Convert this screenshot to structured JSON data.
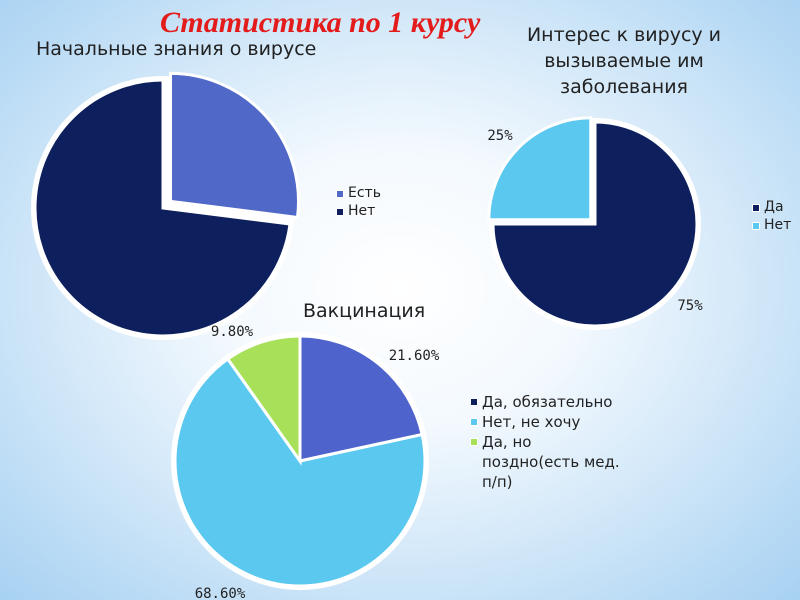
{
  "slide_title": "Статистика по 1 курсу",
  "chart_data": [
    {
      "type": "pie",
      "title": "Начальные знания о вирусе",
      "categories": [
        "Есть",
        "Нет"
      ],
      "values": [
        27,
        73
      ],
      "colors": [
        "#5068c8",
        "#0d1f5c"
      ],
      "legend": [
        "Есть",
        "Нет"
      ],
      "legend_placement": "right",
      "exploded_first_slice": true
    },
    {
      "type": "pie",
      "title": "Интерес к вирусу и вызываемые им заболевания",
      "categories": [
        "Да",
        "Нет"
      ],
      "values": [
        75,
        25
      ],
      "colors": [
        "#0d1f5c",
        "#5bc8f0"
      ],
      "data_labels": [
        "75%",
        "25%"
      ],
      "legend": [
        "Да",
        "Нет"
      ],
      "legend_placement": "right",
      "exploded_second_slice": true
    },
    {
      "type": "pie",
      "title": "Вакцинация",
      "categories": [
        "Да, обязательно",
        "Нет, не хочу",
        "Да, но поздно(есть мед. п/п)"
      ],
      "values": [
        21.6,
        68.6,
        9.8
      ],
      "colors": [
        "#4f63cc",
        "#5bc8f0",
        "#a8e05a"
      ],
      "data_labels": [
        "21.60%",
        "68.60%",
        "9.80%"
      ],
      "legend": [
        "Да, обязательно",
        "Нет, не хочу",
        "Да, но поздно(есть мед. п/п)"
      ],
      "legend_colors": [
        "#0d1f5c",
        "#5bc8f0",
        "#a8e05a"
      ],
      "legend_placement": "right"
    }
  ]
}
